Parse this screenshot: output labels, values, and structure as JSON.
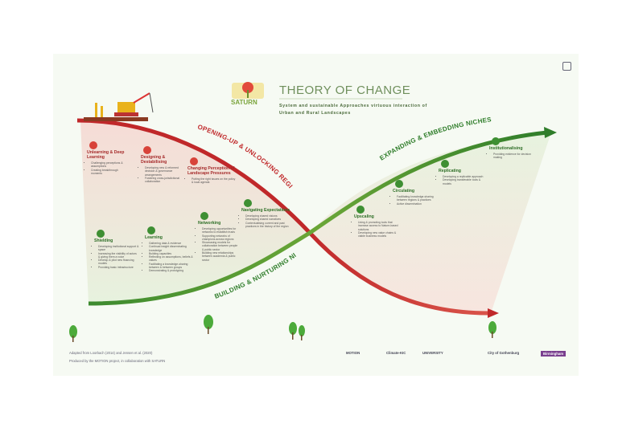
{
  "header": {
    "title": "THEORY OF CHANGE",
    "subtitle": "System and sustainable Approaches virtuous interaction of Urban and Rural Landscapes",
    "logo": "SATURN"
  },
  "phases": [
    {
      "label": "OPENING-UP & UNLOCKING REGIMES"
    },
    {
      "label": "BUILDING & NURTURING NICHES"
    },
    {
      "label": "EXPANDING & EMBEDDING NICHES"
    }
  ],
  "stages": [
    {
      "title": "Unlearning & Deep Learning",
      "points": [
        "Challenging perceptions & assumptions",
        "Creating breakthrough moments"
      ]
    },
    {
      "title": "Designing & Destabilising",
      "points": [
        "Developing new & reformed decision & governance arrangements",
        "Fostering cross-jurisdictional collaboration"
      ]
    },
    {
      "title": "Changing Perception of Landscape Pressures",
      "points": [
        "Putting the right issues on the policy & local agenda"
      ]
    },
    {
      "title": "Navigating Expectations",
      "points": [
        "Developing shared visions",
        "Developing shared narratives",
        "Contextualising current and past practices in the history of the region"
      ]
    },
    {
      "title": "Networking",
      "points": [
        "Developing opportunities for networks to establish trusts",
        "Supporting networks of champions across regions",
        "Showcasing models for collaboration between people & public sector",
        "Building new relationships between academia & public sector"
      ]
    },
    {
      "title": "Learning",
      "points": [
        "Gathering data & evidence",
        "Continual insight disseminating knowledge",
        "Building capacities",
        "Reflecting on assumptions, beliefs & values",
        "Facilitating a knowledge-sharing between & between groups",
        "Demonstrating & prototyping"
      ]
    },
    {
      "title": "Shielding",
      "points": [
        "Developing institutional support & space",
        "Increasing the visibility of actors & giving them a voice",
        "Develop & pilot new financing models",
        "Providing basic infrastructure"
      ]
    },
    {
      "title": "Upscaling",
      "points": [
        "Using & promoting tools that increase access to Nature-based solutions",
        "Developing new value chains & viable business models"
      ]
    },
    {
      "title": "Circulating",
      "points": [
        "Facilitating knowledge-sharing between regions & practices",
        "Active dissemination"
      ]
    },
    {
      "title": "Replicating",
      "points": [
        "Developing a replicable approach",
        "Developing transferable tools & models"
      ]
    },
    {
      "title": "Institutionalising",
      "points": [
        "Providing evidence for decision making"
      ]
    }
  ],
  "footer": {
    "credits": [
      "Adapted from Loorbach (2014) and Jensen et al. (2020)",
      "Produced by the MOTION project, in collaboration with SATURN"
    ],
    "partners": [
      "MOTION",
      "Climate-KIC",
      "UNIVERSITY",
      "City of Gothenburg",
      "Birmingham"
    ]
  }
}
